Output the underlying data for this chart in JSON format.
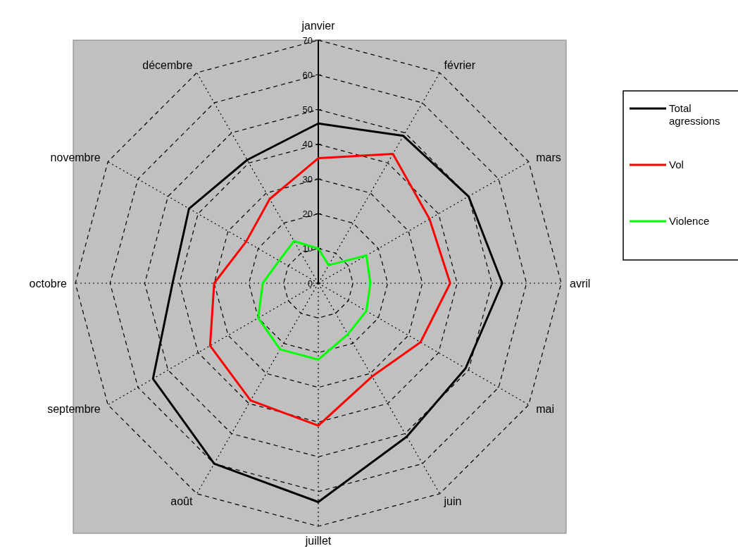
{
  "chart_data": {
    "type": "radar",
    "categories": [
      "janvier",
      "février",
      "mars",
      "avril",
      "mai",
      "juin",
      "juillet",
      "août",
      "septembre",
      "octobre",
      "novembre",
      "décembre"
    ],
    "series": [
      {
        "name": "Total agressions",
        "color": "#000000",
        "values": [
          46,
          49,
          50,
          53,
          49,
          51,
          63,
          60,
          55,
          42,
          43,
          41
        ]
      },
      {
        "name": "Vol",
        "color": "#ff0000",
        "values": [
          36,
          43,
          37,
          38,
          34,
          31,
          41,
          39,
          36,
          30,
          24,
          28
        ]
      },
      {
        "name": "Violence",
        "color": "#00ff00",
        "values": [
          10,
          6,
          16,
          15,
          16,
          17,
          22,
          22,
          20,
          16,
          13,
          14
        ]
      }
    ],
    "ylim": [
      0,
      70
    ],
    "yticks": [
      0,
      10,
      20,
      30,
      40,
      50,
      60,
      70
    ],
    "grid": true,
    "legend": "right"
  }
}
